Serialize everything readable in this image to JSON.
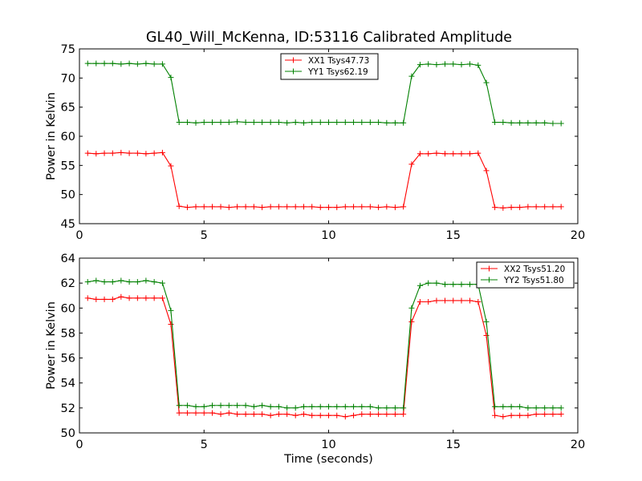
{
  "figure": {
    "title": "GL40_Will_McKenna, ID:53116 Calibrated Amplitude"
  },
  "chart_data": [
    {
      "type": "line",
      "title": "GL40_Will_McKenna, ID:53116 Calibrated Amplitude",
      "xlabel": "",
      "ylabel": "Power in Kelvin",
      "xlim": [
        0,
        20
      ],
      "ylim": [
        45,
        75
      ],
      "xticks": [
        "0",
        "5",
        "10",
        "15",
        "20"
      ],
      "yticks": [
        "45",
        "50",
        "55",
        "60",
        "65",
        "70",
        "75"
      ],
      "grid": false,
      "legend": "top-center",
      "x": [
        0.33,
        0.67,
        1.0,
        1.33,
        1.67,
        2.0,
        2.33,
        2.67,
        3.0,
        3.33,
        3.67,
        4.0,
        4.33,
        4.67,
        5.0,
        5.33,
        5.67,
        6.0,
        6.33,
        6.67,
        7.0,
        7.33,
        7.67,
        8.0,
        8.33,
        8.67,
        9.0,
        9.33,
        9.67,
        10.0,
        10.33,
        10.67,
        11.0,
        11.33,
        11.67,
        12.0,
        12.33,
        12.67,
        13.0,
        13.33,
        13.67,
        14.0,
        14.33,
        14.67,
        15.0,
        15.33,
        15.67,
        16.0,
        16.33,
        16.67,
        17.0,
        17.33,
        17.67,
        18.0,
        18.33,
        18.67,
        19.0,
        19.33
      ],
      "series": [
        {
          "name": "XX1 Tsys47.73",
          "color": "#ff0000",
          "values": [
            57.1,
            57.0,
            57.1,
            57.1,
            57.2,
            57.1,
            57.1,
            57.0,
            57.1,
            57.2,
            54.9,
            48.0,
            47.8,
            47.9,
            47.9,
            47.9,
            47.9,
            47.8,
            47.9,
            47.9,
            47.9,
            47.8,
            47.9,
            47.9,
            47.9,
            47.9,
            47.9,
            47.9,
            47.8,
            47.8,
            47.8,
            47.9,
            47.9,
            47.9,
            47.9,
            47.8,
            47.9,
            47.8,
            47.9,
            55.2,
            57.0,
            57.0,
            57.1,
            57.0,
            57.0,
            57.0,
            57.0,
            57.1,
            54.1,
            47.8,
            47.7,
            47.8,
            47.8,
            47.9,
            47.9,
            47.9,
            47.9,
            47.9
          ]
        },
        {
          "name": "YY1 Tsys62.19",
          "color": "#008000",
          "values": [
            72.5,
            72.5,
            72.5,
            72.5,
            72.4,
            72.5,
            72.4,
            72.5,
            72.4,
            72.4,
            70.1,
            62.4,
            62.4,
            62.3,
            62.4,
            62.4,
            62.4,
            62.4,
            62.5,
            62.4,
            62.4,
            62.4,
            62.4,
            62.4,
            62.3,
            62.4,
            62.3,
            62.4,
            62.4,
            62.4,
            62.4,
            62.4,
            62.4,
            62.4,
            62.4,
            62.4,
            62.3,
            62.3,
            62.3,
            70.3,
            72.3,
            72.4,
            72.3,
            72.4,
            72.4,
            72.3,
            72.4,
            72.2,
            69.2,
            62.4,
            62.4,
            62.3,
            62.3,
            62.3,
            62.3,
            62.3,
            62.2,
            62.2
          ]
        }
      ]
    },
    {
      "type": "line",
      "title": "",
      "xlabel": "Time (seconds)",
      "ylabel": "Power in Kelvin",
      "xlim": [
        0,
        20
      ],
      "ylim": [
        50,
        64
      ],
      "xticks": [
        "0",
        "5",
        "10",
        "15",
        "20"
      ],
      "yticks": [
        "50",
        "52",
        "54",
        "56",
        "58",
        "60",
        "62",
        "64"
      ],
      "grid": false,
      "legend": "top-right",
      "x": [
        0.33,
        0.67,
        1.0,
        1.33,
        1.67,
        2.0,
        2.33,
        2.67,
        3.0,
        3.33,
        3.67,
        4.0,
        4.33,
        4.67,
        5.0,
        5.33,
        5.67,
        6.0,
        6.33,
        6.67,
        7.0,
        7.33,
        7.67,
        8.0,
        8.33,
        8.67,
        9.0,
        9.33,
        9.67,
        10.0,
        10.33,
        10.67,
        11.0,
        11.33,
        11.67,
        12.0,
        12.33,
        12.67,
        13.0,
        13.33,
        13.67,
        14.0,
        14.33,
        14.67,
        15.0,
        15.33,
        15.67,
        16.0,
        16.33,
        16.67,
        17.0,
        17.33,
        17.67,
        18.0,
        18.33,
        18.67,
        19.0,
        19.33
      ],
      "series": [
        {
          "name": "XX2 Tsys51.20",
          "color": "#ff0000",
          "values": [
            60.8,
            60.7,
            60.7,
            60.7,
            60.9,
            60.8,
            60.8,
            60.8,
            60.8,
            60.8,
            58.7,
            51.6,
            51.6,
            51.6,
            51.6,
            51.6,
            51.5,
            51.6,
            51.5,
            51.5,
            51.5,
            51.5,
            51.4,
            51.5,
            51.5,
            51.4,
            51.5,
            51.4,
            51.4,
            51.4,
            51.4,
            51.3,
            51.4,
            51.5,
            51.5,
            51.5,
            51.5,
            51.5,
            51.5,
            58.9,
            60.5,
            60.5,
            60.6,
            60.6,
            60.6,
            60.6,
            60.6,
            60.5,
            57.8,
            51.4,
            51.3,
            51.4,
            51.4,
            51.4,
            51.5,
            51.5,
            51.5,
            51.5
          ]
        },
        {
          "name": "YY2 Tsys51.80",
          "color": "#008000",
          "values": [
            62.1,
            62.2,
            62.1,
            62.1,
            62.2,
            62.1,
            62.1,
            62.2,
            62.1,
            62.0,
            59.8,
            52.2,
            52.2,
            52.1,
            52.1,
            52.2,
            52.2,
            52.2,
            52.2,
            52.2,
            52.1,
            52.2,
            52.1,
            52.1,
            52.0,
            52.0,
            52.1,
            52.1,
            52.1,
            52.1,
            52.1,
            52.1,
            52.1,
            52.1,
            52.1,
            52.0,
            52.0,
            52.0,
            52.0,
            60.0,
            61.8,
            62.0,
            62.0,
            61.9,
            61.9,
            61.9,
            61.9,
            61.9,
            58.9,
            52.1,
            52.1,
            52.1,
            52.1,
            52.0,
            52.0,
            52.0,
            52.0,
            52.0
          ]
        }
      ]
    }
  ]
}
